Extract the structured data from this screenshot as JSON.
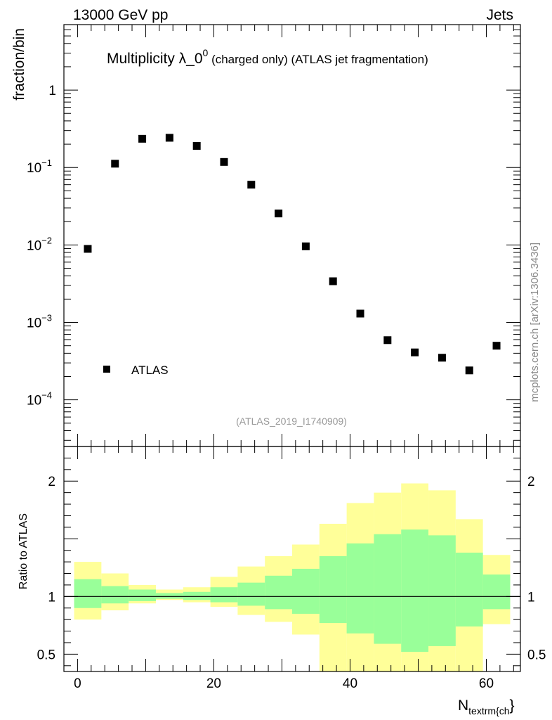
{
  "header": {
    "left": "13000 GeV pp",
    "right": "Jets"
  },
  "title": {
    "main": "Multiplicity λ_0",
    "sup": "0",
    "small": " (charged only)",
    "rest": " (ATLAS jet fragmentation)"
  },
  "watermark": "(ATLAS_2019_I1740909)",
  "side_credit": "mcplots.cern.ch [arXiv:1306.3436]",
  "colors": {
    "band_outer": "#ffff99",
    "band_inner": "#99ff99",
    "marker": "#000000",
    "watermark": "#999999"
  },
  "chart_data": [
    {
      "type": "scatter",
      "title": "Multiplicity λ_0^0 (charged only) (ATLAS jet fragmentation)",
      "ylabel": "fraction/bin",
      "xlabel": "N_textrm{ch}",
      "yscale": "log",
      "xlim": [
        -2,
        65
      ],
      "ylim": [
        2.5e-05,
        7
      ],
      "y_ticks": [
        {
          "value": 1,
          "label": "1"
        },
        {
          "value": 0.1,
          "label": "10",
          "exp": "−1"
        },
        {
          "value": 0.01,
          "label": "10",
          "exp": "−2"
        },
        {
          "value": 0.001,
          "label": "10",
          "exp": "−3"
        },
        {
          "value": 0.0001,
          "label": "10",
          "exp": "−4"
        }
      ],
      "legend": {
        "label": "ATLAS",
        "position": "bottom-left"
      },
      "series": [
        {
          "name": "ATLAS",
          "x": [
            1.5,
            5.5,
            9.5,
            13.5,
            17.5,
            21.5,
            25.5,
            29.5,
            33.5,
            37.5,
            41.5,
            45.5,
            49.5,
            53.5,
            57.5,
            61.5
          ],
          "y": [
            0.0089,
            0.112,
            0.235,
            0.242,
            0.19,
            0.118,
            0.06,
            0.0255,
            0.0096,
            0.0034,
            0.0013,
            0.00059,
            0.00041,
            0.00035,
            0.00024,
            0.0005
          ]
        }
      ]
    },
    {
      "type": "area",
      "ylabel": "Ratio to ATLAS",
      "xlabel": "N_textrm{ch}",
      "xlim": [
        -2,
        65
      ],
      "ylim": [
        0.35,
        2.3
      ],
      "x_ticks": [
        {
          "value": 0,
          "label": "0"
        },
        {
          "value": 20,
          "label": "20"
        },
        {
          "value": 40,
          "label": "40"
        },
        {
          "value": 60,
          "label": "60"
        }
      ],
      "y_ticks": [
        {
          "value": 0.5,
          "label": "0.5"
        },
        {
          "value": 1,
          "label": "1"
        },
        {
          "value": 2,
          "label": "2"
        }
      ],
      "reference_line": 1,
      "bins": [
        {
          "lo": -0.5,
          "hi": 3.5,
          "outer": [
            0.8,
            1.3
          ],
          "inner": [
            0.9,
            1.15
          ]
        },
        {
          "lo": 3.5,
          "hi": 7.5,
          "outer": [
            0.88,
            1.2
          ],
          "inner": [
            0.94,
            1.09
          ]
        },
        {
          "lo": 7.5,
          "hi": 11.5,
          "outer": [
            0.94,
            1.1
          ],
          "inner": [
            0.96,
            1.06
          ]
        },
        {
          "lo": 11.5,
          "hi": 15.5,
          "outer": [
            0.97,
            1.06
          ],
          "inner": [
            0.98,
            1.03
          ]
        },
        {
          "lo": 15.5,
          "hi": 19.5,
          "outer": [
            0.95,
            1.08
          ],
          "inner": [
            0.97,
            1.04
          ]
        },
        {
          "lo": 19.5,
          "hi": 23.5,
          "outer": [
            0.91,
            1.17
          ],
          "inner": [
            0.95,
            1.08
          ]
        },
        {
          "lo": 23.5,
          "hi": 27.5,
          "outer": [
            0.84,
            1.26
          ],
          "inner": [
            0.92,
            1.12
          ]
        },
        {
          "lo": 27.5,
          "hi": 31.5,
          "outer": [
            0.78,
            1.35
          ],
          "inner": [
            0.89,
            1.18
          ]
        },
        {
          "lo": 31.5,
          "hi": 35.5,
          "outer": [
            0.67,
            1.45
          ],
          "inner": [
            0.85,
            1.24
          ]
        },
        {
          "lo": 35.5,
          "hi": 39.5,
          "outer": [
            0.35,
            1.63
          ],
          "inner": [
            0.77,
            1.35
          ]
        },
        {
          "lo": 39.5,
          "hi": 43.5,
          "outer": [
            0.35,
            1.81
          ],
          "inner": [
            0.68,
            1.46
          ]
        },
        {
          "lo": 43.5,
          "hi": 47.5,
          "outer": [
            0.35,
            1.9
          ],
          "inner": [
            0.59,
            1.54
          ]
        },
        {
          "lo": 47.5,
          "hi": 51.5,
          "outer": [
            0.35,
            1.98
          ],
          "inner": [
            0.52,
            1.58
          ]
        },
        {
          "lo": 51.5,
          "hi": 55.5,
          "outer": [
            0.35,
            1.92
          ],
          "inner": [
            0.57,
            1.53
          ]
        },
        {
          "lo": 55.5,
          "hi": 59.5,
          "outer": [
            0.35,
            1.67
          ],
          "inner": [
            0.74,
            1.38
          ]
        },
        {
          "lo": 59.5,
          "hi": 63.5,
          "outer": [
            0.76,
            1.36
          ],
          "inner": [
            0.89,
            1.19
          ]
        }
      ]
    }
  ]
}
